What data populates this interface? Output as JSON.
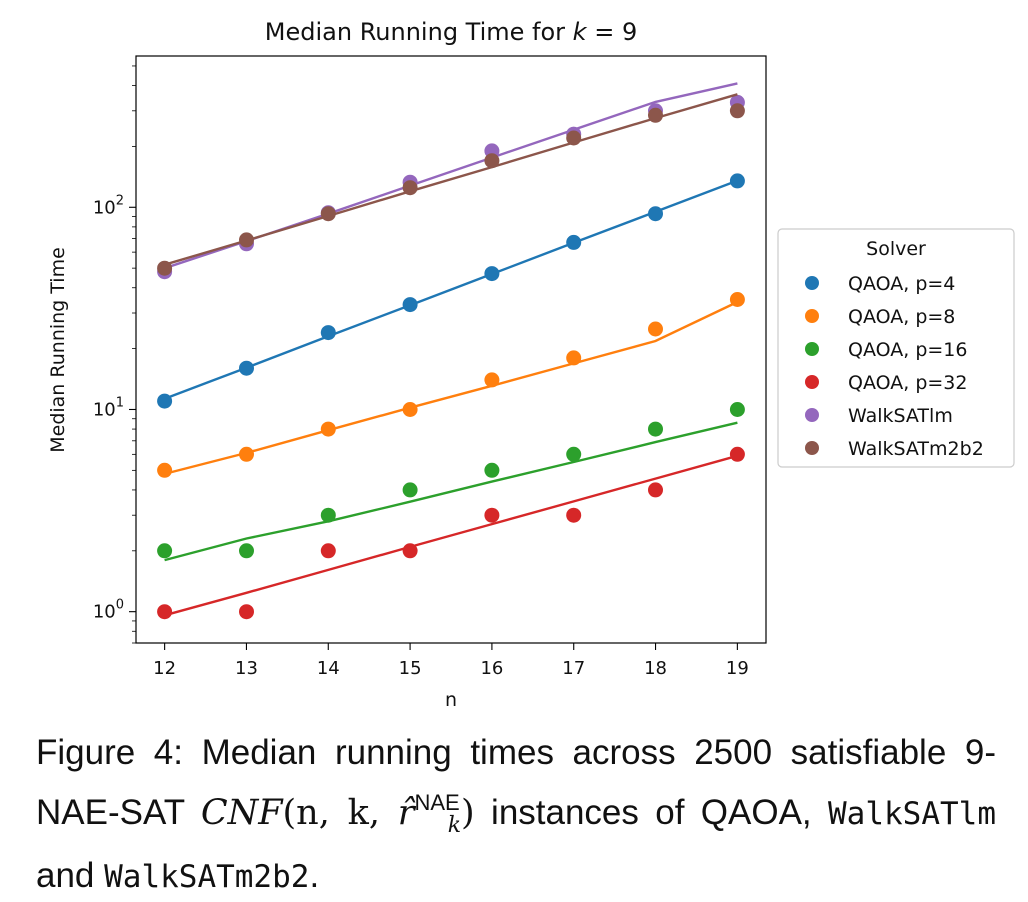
{
  "chart_data": {
    "type": "scatter",
    "title_prefix": "Median Running Time for ",
    "title_var": "k",
    "title_suffix": " = 9",
    "xlabel": "n",
    "ylabel": "Median Running Time",
    "yscale": "log",
    "xlim": [
      11.65,
      19.35
    ],
    "ylim": [
      0.7,
      560
    ],
    "x_ticks": [
      12,
      13,
      14,
      15,
      16,
      17,
      18,
      19
    ],
    "y_ticks": [
      {
        "value": 1,
        "base": "10",
        "exp": "0"
      },
      {
        "value": 10,
        "base": "10",
        "exp": "1"
      },
      {
        "value": 100,
        "base": "10",
        "exp": "2"
      }
    ],
    "grid": false,
    "legend": {
      "title": "Solver",
      "placement": "right, outside plot"
    },
    "x": [
      12,
      13,
      14,
      15,
      16,
      17,
      18,
      19
    ],
    "series": [
      {
        "name": "QAOA, p=4",
        "color": "#1f77b4",
        "values": [
          11,
          16,
          24,
          33,
          47,
          67,
          93,
          135
        ],
        "fit": [
          11.3,
          16.1,
          23.0,
          32.8,
          46.8,
          66.7,
          95.0,
          135.5
        ]
      },
      {
        "name": "QAOA, p=8",
        "color": "#ff7f0e",
        "values": [
          5,
          6,
          8,
          10,
          14,
          18,
          25,
          35
        ],
        "fit": [
          4.8,
          6.1,
          7.9,
          10.2,
          13.1,
          16.9,
          21.8,
          34.0
        ]
      },
      {
        "name": "QAOA, p=16",
        "color": "#2ca02c",
        "values": [
          2,
          2,
          3,
          4,
          5,
          6,
          8,
          10
        ],
        "fit": [
          1.8,
          2.3,
          2.8,
          3.5,
          4.4,
          5.5,
          6.9,
          8.6
        ]
      },
      {
        "name": "QAOA, p=32",
        "color": "#d62728",
        "values": [
          1,
          1,
          2,
          2,
          3,
          3,
          4,
          6
        ],
        "fit": [
          0.96,
          1.24,
          1.61,
          2.09,
          2.71,
          3.51,
          4.55,
          5.9
        ]
      },
      {
        "name": "WalkSATlm",
        "color": "#9467bd",
        "values": [
          48,
          66,
          94,
          133,
          190,
          230,
          300,
          330
        ],
        "fit": [
          50,
          68,
          93,
          128,
          176,
          242,
          332,
          410
        ]
      },
      {
        "name": "WalkSATm2b2",
        "color": "#8c564b",
        "values": [
          50,
          69,
          93,
          125,
          170,
          220,
          285,
          300
        ],
        "fit": [
          52,
          68.5,
          90.5,
          120,
          158,
          209,
          276,
          362
        ]
      }
    ]
  },
  "caption": {
    "figure_label": "Figure 4:",
    "text_before_math": " Median running times across 2500 satisfiable 9-NAE-SAT ",
    "math_func": "CNF",
    "math_args": "(n, k, ",
    "math_r": "r̂",
    "math_sup": "NAE",
    "math_sub": "k",
    "math_close": ")",
    "text_after_math": " instances of QAOA, ",
    "solver1": "WalkSATlm",
    "and_text": " and ",
    "solver2": "WalkSATm2b2",
    "period": "."
  }
}
